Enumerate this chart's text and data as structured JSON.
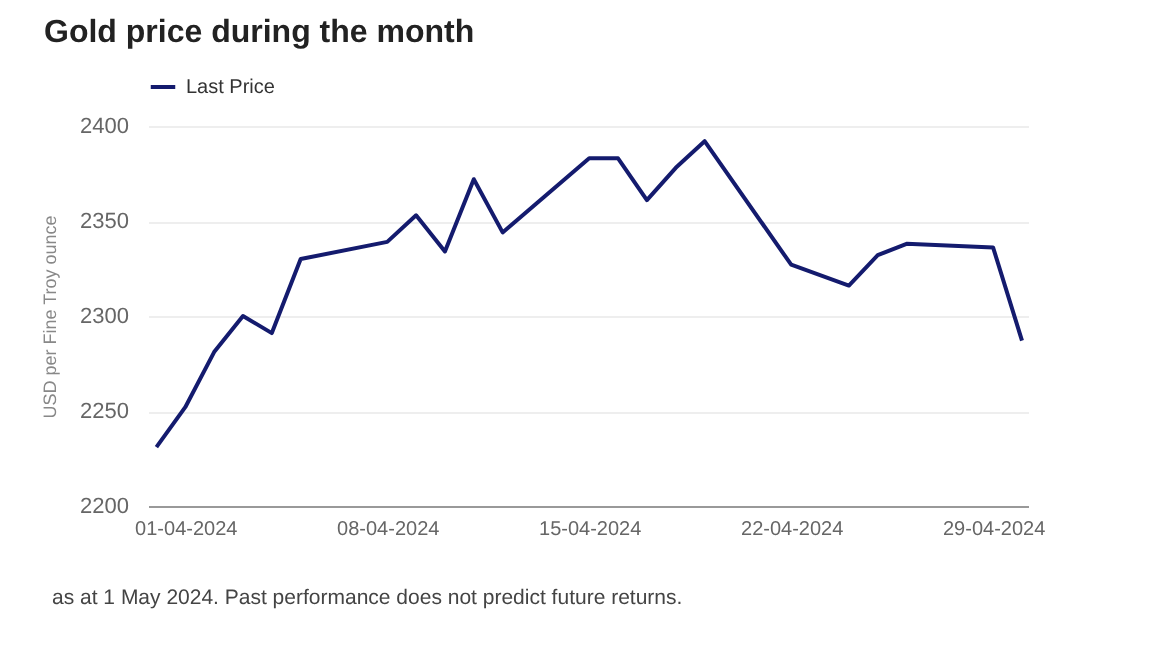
{
  "chart_data": {
    "type": "line",
    "title": "Gold price during the month",
    "ylabel": "USD per Fine Troy ounce",
    "x": [
      "2024-03-31",
      "2024-04-01",
      "2024-04-02",
      "2024-04-03",
      "2024-04-04",
      "2024-04-05",
      "2024-04-08",
      "2024-04-09",
      "2024-04-10",
      "2024-04-11",
      "2024-04-12",
      "2024-04-15",
      "2024-04-16",
      "2024-04-17",
      "2024-04-18",
      "2024-04-19",
      "2024-04-22",
      "2024-04-24",
      "2024-04-25",
      "2024-04-26",
      "2024-04-29",
      "2024-04-30"
    ],
    "series": [
      {
        "name": "Last Price",
        "color": "#141b6e",
        "values": [
          2231,
          2252,
          2281,
          2300,
          2291,
          2330,
          2339,
          2353,
          2334,
          2372,
          2344,
          2383,
          2383,
          2361,
          2378,
          2392,
          2327,
          2316,
          2332,
          2338,
          2336,
          2287
        ]
      }
    ],
    "xlim": [
      "2024-03-30T17:00",
      "2024-04-30T05:00"
    ],
    "xticks": [
      {
        "value": "2024-04-01",
        "label": "01-04-2024"
      },
      {
        "value": "2024-04-08",
        "label": "08-04-2024"
      },
      {
        "value": "2024-04-15",
        "label": "15-04-2024"
      },
      {
        "value": "2024-04-22",
        "label": "22-04-2024"
      },
      {
        "value": "2024-04-29",
        "label": "29-04-2024"
      }
    ],
    "ylim": [
      2200,
      2400
    ],
    "yticks": [
      2200,
      2250,
      2300,
      2350,
      2400
    ],
    "grid": "y",
    "legend": "top left",
    "marker": "none",
    "line_style": "solid",
    "annotations": [
      "as at 1 May 2024. Past performance does not predict future returns."
    ]
  }
}
